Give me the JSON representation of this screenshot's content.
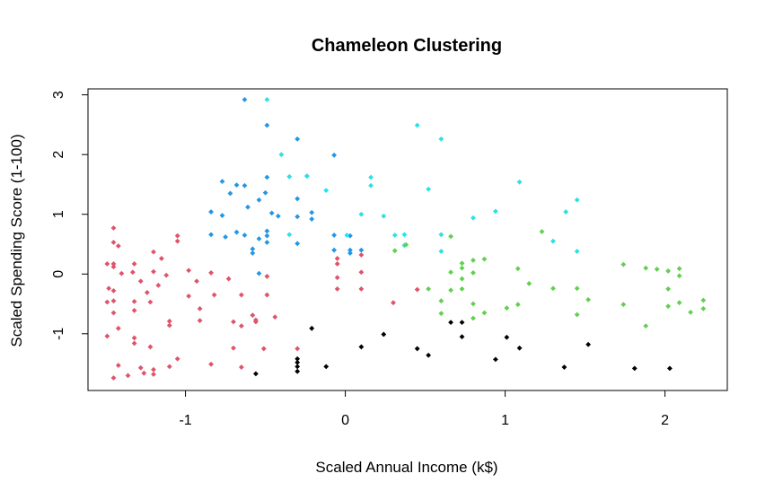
{
  "chart_data": {
    "type": "scatter",
    "title": "Chameleon Clustering",
    "xlabel": "Scaled Annual Income (k$)",
    "ylabel": "Scaled Spending Score (1-100)",
    "xlim": [
      -1.61,
      2.39
    ],
    "ylim": [
      -1.95,
      3.1
    ],
    "x_ticks": [
      -1,
      0,
      1,
      2
    ],
    "x_tick_labels": [
      "-1",
      "0",
      "1",
      "2"
    ],
    "y_ticks": [
      -1,
      0,
      1,
      2,
      3
    ],
    "y_tick_labels": [
      "-1",
      "0",
      "1",
      "2",
      "3"
    ],
    "grid": false,
    "legend": "none",
    "series": [
      {
        "color": "#DF536B",
        "points": [
          [
            -1.49,
            -1.04
          ],
          [
            -1.49,
            -0.47
          ],
          [
            -1.49,
            0.17
          ],
          [
            -1.48,
            -0.24
          ],
          [
            -1.45,
            0.77
          ],
          [
            -1.45,
            0.53
          ],
          [
            -1.45,
            0.17
          ],
          [
            -1.45,
            0.12
          ],
          [
            -1.45,
            -0.28
          ],
          [
            -1.45,
            -0.45
          ],
          [
            -1.45,
            -0.65
          ],
          [
            -1.45,
            -1.74
          ],
          [
            -1.42,
            -1.53
          ],
          [
            -1.42,
            -0.91
          ],
          [
            -1.42,
            0.47
          ],
          [
            -1.4,
            0.01
          ],
          [
            -1.36,
            -1.7
          ],
          [
            -1.33,
            0.03
          ],
          [
            -1.32,
            -1.07
          ],
          [
            -1.32,
            -1.16
          ],
          [
            -1.32,
            -0.46
          ],
          [
            -1.32,
            -0.61
          ],
          [
            -1.32,
            0.17
          ],
          [
            -1.28,
            -0.12
          ],
          [
            -1.28,
            -1.57
          ],
          [
            -1.26,
            -1.66
          ],
          [
            -1.24,
            -0.31
          ],
          [
            -1.22,
            -1.22
          ],
          [
            -1.22,
            -0.47
          ],
          [
            -1.2,
            -1.6
          ],
          [
            -1.2,
            -1.68
          ],
          [
            -1.2,
            0.04
          ],
          [
            -1.2,
            0.37
          ],
          [
            -1.17,
            -0.19
          ],
          [
            -1.15,
            0.26
          ],
          [
            -1.12,
            -0.02
          ],
          [
            -1.1,
            -1.55
          ],
          [
            -1.1,
            -0.79
          ],
          [
            -1.1,
            -0.86
          ],
          [
            -1.05,
            -1.42
          ],
          [
            -1.05,
            0.55
          ],
          [
            -1.05,
            0.64
          ],
          [
            -0.98,
            0.06
          ],
          [
            -0.98,
            -0.37
          ],
          [
            -0.93,
            -0.12
          ],
          [
            -0.91,
            -0.58
          ],
          [
            -0.91,
            -0.78
          ],
          [
            -0.84,
            -1.51
          ],
          [
            -0.84,
            0.02
          ],
          [
            -0.82,
            -0.35
          ],
          [
            -0.73,
            -0.08
          ],
          [
            -0.7,
            -0.8
          ],
          [
            -0.7,
            -1.24
          ],
          [
            -0.65,
            -0.87
          ],
          [
            -0.65,
            -0.35
          ],
          [
            -0.65,
            -1.56
          ],
          [
            -0.58,
            -0.69
          ],
          [
            -0.56,
            -0.77
          ],
          [
            -0.56,
            -0.8
          ],
          [
            -0.51,
            -1.25
          ],
          [
            -0.49,
            -0.35
          ],
          [
            -0.49,
            -0.04
          ],
          [
            -0.44,
            -0.72
          ],
          [
            -0.3,
            -1.25
          ],
          [
            -0.05,
            -0.06
          ],
          [
            -0.05,
            0.17
          ],
          [
            -0.05,
            0.26
          ],
          [
            -0.05,
            -0.25
          ],
          [
            0.1,
            0.03
          ],
          [
            0.1,
            -0.25
          ],
          [
            0.1,
            0.32
          ],
          [
            0.3,
            -0.48
          ],
          [
            0.45,
            -0.26
          ]
        ]
      },
      {
        "color": "#2297E6",
        "points": [
          [
            -0.84,
            1.04
          ],
          [
            -0.84,
            0.66
          ],
          [
            -0.77,
            1.55
          ],
          [
            -0.77,
            0.98
          ],
          [
            -0.75,
            0.62
          ],
          [
            -0.72,
            1.35
          ],
          [
            -0.68,
            1.49
          ],
          [
            -0.68,
            0.7
          ],
          [
            -0.63,
            2.92
          ],
          [
            -0.63,
            1.48
          ],
          [
            -0.63,
            0.65
          ],
          [
            -0.61,
            1.12
          ],
          [
            -0.58,
            0.42
          ],
          [
            -0.58,
            0.35
          ],
          [
            -0.54,
            1.24
          ],
          [
            -0.54,
            0.59
          ],
          [
            -0.54,
            0.01
          ],
          [
            -0.5,
            1.36
          ],
          [
            -0.49,
            1.62
          ],
          [
            -0.49,
            2.49
          ],
          [
            -0.49,
            0.64
          ],
          [
            -0.49,
            0.72
          ],
          [
            -0.49,
            0.53
          ],
          [
            -0.46,
            1.02
          ],
          [
            -0.42,
            0.97
          ],
          [
            -0.3,
            2.26
          ],
          [
            -0.3,
            1.26
          ],
          [
            -0.3,
            0.51
          ],
          [
            -0.3,
            0.96
          ],
          [
            -0.24,
            1.64
          ],
          [
            -0.21,
            1.03
          ],
          [
            -0.21,
            0.92
          ],
          [
            -0.07,
            1.99
          ],
          [
            -0.07,
            0.65
          ],
          [
            -0.07,
            0.4
          ],
          [
            0.03,
            0.35
          ],
          [
            0.03,
            0.64
          ],
          [
            0.03,
            0.4
          ],
          [
            0.1,
            0.4
          ]
        ]
      },
      {
        "color": "#28E2E5",
        "points": [
          [
            -0.49,
            2.92
          ],
          [
            -0.4,
            2.0
          ],
          [
            -0.35,
            1.63
          ],
          [
            -0.35,
            0.66
          ],
          [
            -0.24,
            1.64
          ],
          [
            -0.12,
            1.4
          ],
          [
            0.01,
            0.65
          ],
          [
            0.1,
            1.0
          ],
          [
            0.16,
            1.62
          ],
          [
            0.16,
            1.48
          ],
          [
            0.24,
            0.97
          ],
          [
            0.31,
            0.65
          ],
          [
            0.37,
            0.48
          ],
          [
            0.37,
            0.66
          ],
          [
            0.45,
            2.49
          ],
          [
            0.52,
            1.42
          ],
          [
            0.6,
            2.26
          ],
          [
            0.6,
            0.66
          ],
          [
            0.6,
            0.38
          ],
          [
            0.8,
            0.94
          ],
          [
            0.94,
            1.05
          ],
          [
            1.09,
            1.54
          ],
          [
            1.3,
            0.55
          ],
          [
            1.38,
            1.04
          ],
          [
            1.45,
            1.24
          ],
          [
            1.45,
            0.38
          ]
        ]
      },
      {
        "color": "#61D04F",
        "points": [
          [
            0.31,
            0.39
          ],
          [
            0.38,
            0.49
          ],
          [
            0.52,
            -0.25
          ],
          [
            0.6,
            -0.45
          ],
          [
            0.6,
            -0.66
          ],
          [
            0.66,
            0.63
          ],
          [
            0.66,
            0.03
          ],
          [
            0.66,
            -0.27
          ],
          [
            0.73,
            0.1
          ],
          [
            0.73,
            0.18
          ],
          [
            0.73,
            -0.08
          ],
          [
            0.73,
            -0.25
          ],
          [
            0.8,
            0.23
          ],
          [
            0.8,
            0.02
          ],
          [
            0.8,
            -0.5
          ],
          [
            0.8,
            -0.74
          ],
          [
            0.87,
            0.25
          ],
          [
            0.87,
            -0.65
          ],
          [
            1.01,
            -0.57
          ],
          [
            1.08,
            0.09
          ],
          [
            1.08,
            -0.51
          ],
          [
            1.15,
            -0.16
          ],
          [
            1.23,
            0.71
          ],
          [
            1.3,
            -0.24
          ],
          [
            1.45,
            -0.24
          ],
          [
            1.45,
            -0.68
          ],
          [
            1.52,
            -0.43
          ],
          [
            1.74,
            0.16
          ],
          [
            1.74,
            -0.51
          ],
          [
            1.88,
            0.1
          ],
          [
            1.88,
            -0.87
          ],
          [
            1.95,
            0.08
          ],
          [
            2.02,
            0.05
          ],
          [
            2.02,
            -0.25
          ],
          [
            2.02,
            -0.54
          ],
          [
            2.09,
            0.09
          ],
          [
            2.09,
            -0.03
          ],
          [
            2.09,
            -0.48
          ],
          [
            2.16,
            -0.64
          ],
          [
            2.24,
            -0.44
          ],
          [
            2.24,
            -0.58
          ]
        ]
      },
      {
        "color": "#000000",
        "points": [
          [
            -0.56,
            -1.67
          ],
          [
            -0.3,
            -1.42
          ],
          [
            -0.3,
            -1.48
          ],
          [
            -0.3,
            -1.55
          ],
          [
            -0.3,
            -1.63
          ],
          [
            -0.21,
            -0.91
          ],
          [
            -0.12,
            -1.55
          ],
          [
            0.1,
            -1.22
          ],
          [
            0.24,
            -1.01
          ],
          [
            0.45,
            -1.25
          ],
          [
            0.52,
            -1.36
          ],
          [
            0.66,
            -0.81
          ],
          [
            0.73,
            -0.81
          ],
          [
            0.73,
            -1.05
          ],
          [
            0.94,
            -1.43
          ],
          [
            1.01,
            -1.06
          ],
          [
            1.09,
            -1.24
          ],
          [
            1.37,
            -1.56
          ],
          [
            1.52,
            -1.18
          ],
          [
            1.81,
            -1.58
          ],
          [
            2.03,
            -1.58
          ]
        ]
      }
    ]
  }
}
